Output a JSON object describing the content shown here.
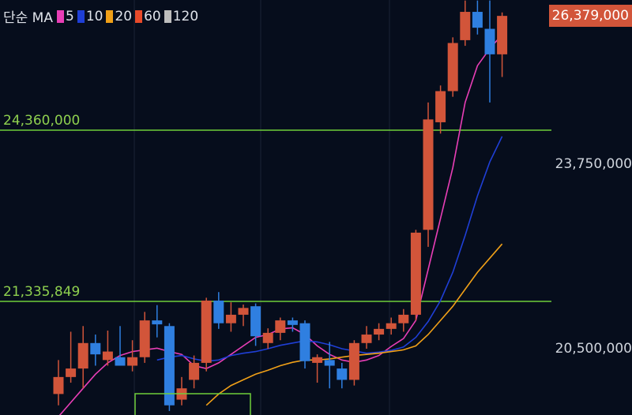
{
  "legend": {
    "title": "단순 MA",
    "items": [
      {
        "label": "5",
        "color": "#e83eb6"
      },
      {
        "label": "10",
        "color": "#1f3fd6"
      },
      {
        "label": "20",
        "color": "#f0a018"
      },
      {
        "label": "60",
        "color": "#e84a2a"
      },
      {
        "label": "120",
        "color": "#bdbdbd"
      }
    ]
  },
  "price_axis": {
    "current_price": "26,379,000",
    "ticks": [
      "23,750,000",
      "20,500,000"
    ]
  },
  "horizontal_lines": [
    {
      "label": "24,360,000",
      "value": 24360000
    },
    {
      "label": "21,335,849",
      "value": 21335849
    }
  ],
  "colors": {
    "up": "#d2553a",
    "down": "#2f7fe0",
    "hline": "#6fcf3a",
    "background": "#060d1c"
  },
  "chart_data": {
    "type": "candlestick",
    "ylim": [
      19500000,
      27000000
    ],
    "candles": [
      {
        "o": 19700000,
        "h": 20300000,
        "l": 19500000,
        "c": 20000000
      },
      {
        "o": 20000000,
        "h": 20800000,
        "l": 19900000,
        "c": 20150000
      },
      {
        "o": 20150000,
        "h": 20900000,
        "l": 19800000,
        "c": 20600000
      },
      {
        "o": 20600000,
        "h": 20750000,
        "l": 20200000,
        "c": 20400000
      },
      {
        "o": 20300000,
        "h": 20820000,
        "l": 20200000,
        "c": 20450000
      },
      {
        "o": 20350000,
        "h": 20900000,
        "l": 20250000,
        "c": 20200000
      },
      {
        "o": 20200000,
        "h": 20650000,
        "l": 20100000,
        "c": 20350000
      },
      {
        "o": 20350000,
        "h": 21150000,
        "l": 20250000,
        "c": 21000000
      },
      {
        "o": 21000000,
        "h": 21270000,
        "l": 20700000,
        "c": 20930000
      },
      {
        "o": 20900000,
        "h": 20950000,
        "l": 19400000,
        "c": 19500000
      },
      {
        "o": 19600000,
        "h": 20000000,
        "l": 19500000,
        "c": 19800000
      },
      {
        "o": 19950000,
        "h": 20380000,
        "l": 19800000,
        "c": 20250000
      },
      {
        "o": 20250000,
        "h": 21400000,
        "l": 20100000,
        "c": 21350000
      },
      {
        "o": 21350000,
        "h": 21500000,
        "l": 20850000,
        "c": 20950000
      },
      {
        "o": 20950000,
        "h": 21320000,
        "l": 20800000,
        "c": 21100000
      },
      {
        "o": 21100000,
        "h": 21280000,
        "l": 20900000,
        "c": 21220000
      },
      {
        "o": 21250000,
        "h": 21300000,
        "l": 20550000,
        "c": 20720000
      },
      {
        "o": 20600000,
        "h": 20860000,
        "l": 20500000,
        "c": 20780000
      },
      {
        "o": 20780000,
        "h": 21050000,
        "l": 20650000,
        "c": 21000000
      },
      {
        "o": 21000000,
        "h": 21050000,
        "l": 20800000,
        "c": 20920000
      },
      {
        "o": 20950000,
        "h": 21000000,
        "l": 20150000,
        "c": 20280000
      },
      {
        "o": 20250000,
        "h": 20400000,
        "l": 19900000,
        "c": 20350000
      },
      {
        "o": 20300000,
        "h": 20620000,
        "l": 19800000,
        "c": 20200000
      },
      {
        "o": 20150000,
        "h": 20250000,
        "l": 19800000,
        "c": 19950000
      },
      {
        "o": 19950000,
        "h": 20650000,
        "l": 19850000,
        "c": 20600000
      },
      {
        "o": 20600000,
        "h": 20900000,
        "l": 20500000,
        "c": 20750000
      },
      {
        "o": 20750000,
        "h": 20950000,
        "l": 20650000,
        "c": 20850000
      },
      {
        "o": 20850000,
        "h": 21050000,
        "l": 20750000,
        "c": 20950000
      },
      {
        "o": 20950000,
        "h": 21200000,
        "l": 20800000,
        "c": 21100000
      },
      {
        "o": 21100000,
        "h": 22600000,
        "l": 21000000,
        "c": 22550000
      },
      {
        "o": 22600000,
        "h": 24850000,
        "l": 22300000,
        "c": 24550000
      },
      {
        "o": 24500000,
        "h": 25150000,
        "l": 24300000,
        "c": 25050000
      },
      {
        "o": 25050000,
        "h": 26000000,
        "l": 24950000,
        "c": 25900000
      },
      {
        "o": 25950000,
        "h": 26650000,
        "l": 25850000,
        "c": 26450000
      },
      {
        "o": 26450000,
        "h": 26650000,
        "l": 26050000,
        "c": 26170000
      },
      {
        "o": 26150000,
        "h": 26650000,
        "l": 24850000,
        "c": 25700000
      },
      {
        "o": 25700000,
        "h": 26440000,
        "l": 25300000,
        "c": 26379000
      }
    ],
    "ma": [
      {
        "name": "5",
        "color": "#e83eb6",
        "values": [
          19300000,
          19550000,
          19800000,
          20050000,
          20250000,
          20380000,
          20450000,
          20480000,
          20510000,
          20450000,
          20400000,
          20200000,
          20150000,
          20250000,
          20400000,
          20550000,
          20700000,
          20750000,
          20850000,
          20870000,
          20750000,
          20550000,
          20400000,
          20300000,
          20260000,
          20300000,
          20380000,
          20540000,
          20680000,
          21000000,
          21900000,
          22800000,
          23700000,
          24850000,
          25500000,
          25800000,
          26050000
        ]
      },
      {
        "name": "10",
        "color": "#1f3fd6",
        "values": [
          null,
          null,
          null,
          null,
          null,
          null,
          null,
          null,
          20300000,
          20350000,
          20380000,
          20320000,
          20280000,
          20300000,
          20380000,
          20420000,
          20450000,
          20500000,
          20560000,
          20600000,
          20640000,
          20620000,
          20570000,
          20500000,
          20460000,
          20420000,
          20440000,
          20470000,
          20530000,
          20700000,
          20980000,
          21350000,
          21850000,
          22500000,
          23200000,
          23800000,
          24250000
        ]
      },
      {
        "name": "20",
        "color": "#f0a018",
        "values": [
          null,
          null,
          null,
          null,
          null,
          null,
          null,
          null,
          null,
          null,
          null,
          null,
          19500000,
          19700000,
          19850000,
          19950000,
          20050000,
          20120000,
          20200000,
          20260000,
          20300000,
          20300000,
          20320000,
          20350000,
          20380000,
          20400000,
          20420000,
          20450000,
          20480000,
          20550000,
          20750000,
          21000000,
          21250000,
          21550000,
          21850000,
          22100000,
          22350000
        ]
      }
    ]
  }
}
